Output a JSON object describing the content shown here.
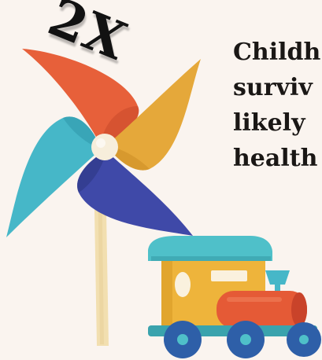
{
  "multiplier": "2X",
  "statement_lines": [
    "Childh",
    "surviv",
    "likely",
    "health"
  ],
  "colors": {
    "background": "#faf4ef",
    "orange_blade": "#e7603a",
    "gold_blade": "#e5a83a",
    "teal_blade": "#46b7c8",
    "blue_blade": "#3f49a8",
    "hub": "#f7eedb",
    "stick": "#f2dfb0",
    "train_roof": "#4fc0c9",
    "train_body": "#eeb43b",
    "train_boiler": "#e55a36",
    "train_wheels": "#2e5fa8"
  },
  "icons": [
    "pinwheel-icon",
    "toy-train-icon"
  ]
}
